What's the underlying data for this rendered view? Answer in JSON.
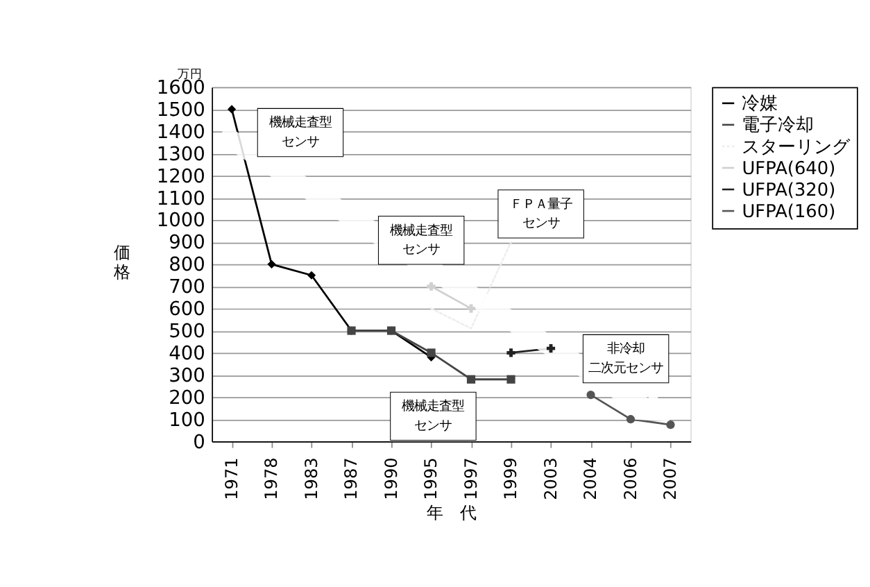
{
  "chart_data": {
    "type": "line",
    "xlabel": "年　代",
    "ylabel": "価格",
    "categories": [
      "1971",
      "1978",
      "1983",
      "1987",
      "1990",
      "1995",
      "1997",
      "1999",
      "2003",
      "2004",
      "2006",
      "2007"
    ],
    "series": [
      {
        "name": "冷媒",
        "color": "#000000",
        "marker": "diamond",
        "line_style": "solid",
        "values": [
          1500,
          800,
          750,
          500,
          500,
          380,
          null,
          null,
          null,
          null,
          null,
          null
        ]
      },
      {
        "name": "電子冷却",
        "color": "#444444",
        "marker": "square",
        "line_style": "solid",
        "values": [
          null,
          null,
          null,
          500,
          500,
          400,
          280,
          280,
          null,
          null,
          null,
          null
        ]
      },
      {
        "name": "スターリング",
        "color": "#eeeeee",
        "marker": "none",
        "line_style": "dotted",
        "values": [
          null,
          null,
          null,
          null,
          null,
          600,
          510,
          900,
          null,
          null,
          null,
          null
        ]
      },
      {
        "name": "UFPA(640)",
        "color": "#d0d0d0",
        "marker": "cross",
        "line_style": "solid",
        "values": [
          null,
          null,
          null,
          null,
          null,
          700,
          600,
          null,
          null,
          null,
          null,
          null
        ]
      },
      {
        "name": "UFPA(320)",
        "color": "#222222",
        "marker": "cross",
        "line_style": "solid",
        "values": [
          null,
          null,
          null,
          null,
          null,
          null,
          null,
          400,
          420,
          null,
          null,
          null
        ]
      },
      {
        "name": "UFPA(160)",
        "color": "#555555",
        "marker": "circle",
        "line_style": "solid",
        "values": [
          null,
          null,
          null,
          null,
          null,
          null,
          null,
          null,
          null,
          210,
          100,
          75
        ]
      }
    ],
    "ylim": [
      0,
      1600
    ],
    "yticks": [
      0,
      100,
      200,
      300,
      400,
      500,
      600,
      700,
      800,
      900,
      1000,
      1100,
      1200,
      1300,
      1400,
      1500,
      1600
    ],
    "grid": "y",
    "legend": "right",
    "annotations": [
      "万円",
      "機械走査型センサ",
      "ＦＰＡ量子センサ",
      "機械走査型センサ",
      "非冷却二次元センサ",
      "機械走査型センサ"
    ]
  }
}
